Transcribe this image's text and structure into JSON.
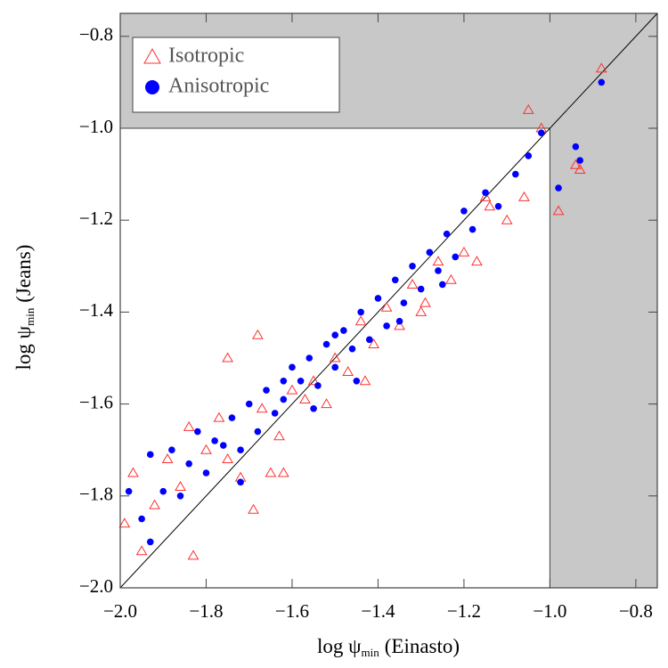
{
  "chart_data": {
    "type": "scatter",
    "x_label": "log ψ",
    "x_label_sub": "min",
    "x_label_suffix": "(Einasto)",
    "y_label": "log ψ",
    "y_label_sub": "min",
    "y_label_suffix": "(Jeans)",
    "xlim": [
      -2.0,
      -0.75
    ],
    "ylim": [
      -2.0,
      -0.75
    ],
    "xticks": [
      {
        "value": -2.0,
        "label": "−2.0"
      },
      {
        "value": -1.8,
        "label": "−1.8"
      },
      {
        "value": -1.6,
        "label": "−1.6"
      },
      {
        "value": -1.4,
        "label": "−1.4"
      },
      {
        "value": -1.2,
        "label": "−1.2"
      },
      {
        "value": -1.0,
        "label": "−1.0"
      },
      {
        "value": -0.8,
        "label": "−0.8"
      }
    ],
    "yticks": [
      {
        "value": -2.0,
        "label": "−2.0"
      },
      {
        "value": -1.8,
        "label": "−1.8"
      },
      {
        "value": -1.6,
        "label": "−1.6"
      },
      {
        "value": -1.4,
        "label": "−1.4"
      },
      {
        "value": -1.2,
        "label": "−1.2"
      },
      {
        "value": -1.0,
        "label": "−1.0"
      },
      {
        "value": -0.8,
        "label": "−0.8"
      }
    ],
    "shaded_beyond": -1.0,
    "shade_color": "#c8c8c8",
    "identity_line": true,
    "legend": "upper left",
    "series": [
      {
        "name": "Isotropic",
        "color": "#ff3030",
        "marker": "open-triangle",
        "x": [
          -1.99,
          -1.97,
          -1.95,
          -1.92,
          -1.89,
          -1.86,
          -1.83,
          -1.8,
          -1.77,
          -1.75,
          -1.72,
          -1.69,
          -1.67,
          -1.65,
          -1.63,
          -1.6,
          -1.57,
          -1.55,
          -1.52,
          -1.5,
          -1.47,
          -1.44,
          -1.41,
          -1.38,
          -1.35,
          -1.32,
          -1.29,
          -1.26,
          -1.23,
          -1.2,
          -1.17,
          -1.14,
          -1.1,
          -1.06,
          -1.05,
          -1.02,
          -0.98,
          -0.94,
          -0.93,
          -0.88,
          -1.84,
          -1.75,
          -1.68,
          -1.62,
          -1.43,
          -1.3,
          -1.15
        ],
        "values": [
          -1.86,
          -1.75,
          -1.92,
          -1.82,
          -1.72,
          -1.78,
          -1.93,
          -1.7,
          -1.63,
          -1.72,
          -1.76,
          -1.83,
          -1.61,
          -1.75,
          -1.67,
          -1.57,
          -1.59,
          -1.55,
          -1.6,
          -1.5,
          -1.53,
          -1.42,
          -1.47,
          -1.39,
          -1.43,
          -1.34,
          -1.38,
          -1.29,
          -1.33,
          -1.27,
          -1.29,
          -1.17,
          -1.2,
          -1.15,
          -0.96,
          -1.0,
          -1.18,
          -1.08,
          -1.09,
          -0.87,
          -1.65,
          -1.5,
          -1.45,
          -1.75,
          -1.55,
          -1.4,
          -1.15
        ]
      },
      {
        "name": "Anisotropic",
        "color": "#0000ff",
        "marker": "filled-circle",
        "x": [
          -1.98,
          -1.95,
          -1.93,
          -1.9,
          -1.88,
          -1.86,
          -1.84,
          -1.82,
          -1.8,
          -1.78,
          -1.76,
          -1.74,
          -1.72,
          -1.7,
          -1.68,
          -1.66,
          -1.64,
          -1.62,
          -1.6,
          -1.58,
          -1.56,
          -1.54,
          -1.52,
          -1.5,
          -1.48,
          -1.46,
          -1.44,
          -1.42,
          -1.4,
          -1.38,
          -1.36,
          -1.34,
          -1.32,
          -1.3,
          -1.28,
          -1.26,
          -1.24,
          -1.22,
          -1.2,
          -1.18,
          -1.15,
          -1.12,
          -1.08,
          -1.05,
          -1.02,
          -0.98,
          -0.94,
          -0.93,
          -0.88,
          -1.93,
          -1.72,
          -1.62,
          -1.55,
          -1.5,
          -1.45,
          -1.35,
          -1.25
        ],
        "values": [
          -1.79,
          -1.85,
          -1.71,
          -1.79,
          -1.7,
          -1.8,
          -1.73,
          -1.66,
          -1.75,
          -1.68,
          -1.69,
          -1.63,
          -1.7,
          -1.6,
          -1.66,
          -1.57,
          -1.62,
          -1.59,
          -1.52,
          -1.55,
          -1.5,
          -1.56,
          -1.47,
          -1.52,
          -1.44,
          -1.48,
          -1.4,
          -1.46,
          -1.37,
          -1.43,
          -1.33,
          -1.38,
          -1.3,
          -1.35,
          -1.27,
          -1.31,
          -1.23,
          -1.28,
          -1.18,
          -1.22,
          -1.14,
          -1.17,
          -1.1,
          -1.06,
          -1.01,
          -1.13,
          -1.04,
          -1.07,
          -0.9,
          -1.9,
          -1.77,
          -1.55,
          -1.61,
          -1.45,
          -1.55,
          -1.42,
          -1.34
        ]
      }
    ]
  }
}
